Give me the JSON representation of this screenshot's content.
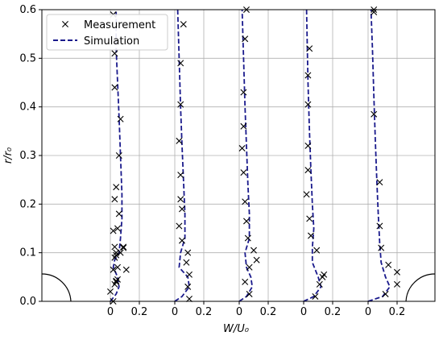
{
  "chart_data": {
    "type": "scatter",
    "xlabel": "W/U₀",
    "ylabel": "r/r₀",
    "ylim": [
      0,
      0.6
    ],
    "y_ticks": [
      "0.0",
      "0.1",
      "0.2",
      "0.3",
      "0.4",
      "0.5",
      "0.6"
    ],
    "x_ticks": [
      "0",
      "0.2",
      "0",
      "0.2",
      "0",
      "0.2",
      "0",
      "0.2",
      "0",
      "0.2"
    ],
    "grid": true,
    "legend": {
      "position": "top-left",
      "entries": [
        "Measurement",
        "Simulation"
      ]
    },
    "line_color": "#1a1a8c",
    "marker_color": "#000000",
    "series": [
      {
        "name": "Measurement",
        "panels": [
          {
            "x": [
              0.0,
              0.03,
              0.04,
              0.02,
              0.05,
              0.04,
              0.03,
              0.02,
              0.09,
              0.06,
              0.03,
              0.04,
              0.06,
              0.07,
              0.03,
              0.03,
              0.02
            ],
            "y": [
              0.02,
              0.035,
              0.042,
              0.065,
              0.07,
              0.1,
              0.112,
              0.145,
              0.112,
              0.18,
              0.21,
              0.235,
              0.3,
              0.375,
              0.44,
              0.51,
              0.59
            ],
            "point_marks": [
              [
                0.02,
                0.0
              ],
              [
                0.04,
                0.04
              ],
              [
                0.05,
                0.045
              ],
              [
                0.03,
                0.09
              ],
              [
                0.04,
                0.095
              ],
              [
                0.05,
                0.15
              ],
              [
                0.07,
                0.1
              ],
              [
                0.09,
                0.11
              ],
              [
                0.11,
                0.065
              ]
            ]
          },
          {
            "x": [
              0.1,
              0.09,
              0.1,
              0.08,
              0.09,
              0.05,
              0.03,
              0.05,
              0.04,
              0.04,
              0.03,
              0.04,
              0.04,
              0.06
            ],
            "y": [
              0.005,
              0.03,
              0.055,
              0.08,
              0.1,
              0.125,
              0.155,
              0.19,
              0.21,
              0.26,
              0.33,
              0.405,
              0.49,
              0.57
            ]
          },
          {
            "x": [
              0.07,
              0.04,
              0.07,
              0.12,
              0.1,
              0.06,
              0.05,
              0.04,
              0.03,
              0.02,
              0.03,
              0.03,
              0.04,
              0.05
            ],
            "y": [
              0.015,
              0.04,
              0.07,
              0.085,
              0.105,
              0.13,
              0.165,
              0.205,
              0.265,
              0.315,
              0.36,
              0.43,
              0.54,
              0.6
            ]
          },
          {
            "x": [
              0.08,
              0.11,
              0.13,
              0.14,
              0.09,
              0.05,
              0.04,
              0.02,
              0.03,
              0.03,
              0.03,
              0.03,
              0.04
            ],
            "y": [
              0.01,
              0.035,
              0.05,
              0.055,
              0.105,
              0.135,
              0.17,
              0.22,
              0.27,
              0.32,
              0.405,
              0.465,
              0.52
            ]
          },
          {
            "x": [
              0.12,
              0.2,
              0.2,
              0.14,
              0.09,
              0.08,
              0.08,
              0.04,
              0.04,
              0.04
            ],
            "y": [
              0.015,
              0.035,
              0.06,
              0.075,
              0.11,
              0.155,
              0.245,
              0.385,
              0.595,
              0.6
            ]
          }
        ]
      },
      {
        "name": "Simulation",
        "panels": [
          {
            "x": [
              0.0,
              0.04,
              0.06,
              0.05,
              0.02,
              0.03,
              0.06,
              0.07,
              0.08,
              0.08,
              0.07,
              0.06,
              0.05,
              0.04,
              0.04
            ],
            "y": [
              0.0,
              0.015,
              0.03,
              0.05,
              0.07,
              0.085,
              0.1,
              0.13,
              0.17,
              0.22,
              0.3,
              0.38,
              0.45,
              0.52,
              0.6
            ]
          },
          {
            "x": [
              0.0,
              0.05,
              0.1,
              0.09,
              0.03,
              0.04,
              0.07,
              0.07,
              0.06,
              0.05,
              0.04,
              0.03,
              0.02
            ],
            "y": [
              0.0,
              0.01,
              0.03,
              0.05,
              0.07,
              0.1,
              0.13,
              0.18,
              0.25,
              0.32,
              0.4,
              0.5,
              0.6
            ]
          },
          {
            "x": [
              0.0,
              0.05,
              0.09,
              0.08,
              0.05,
              0.04,
              0.07,
              0.07,
              0.06,
              0.05,
              0.04,
              0.03,
              0.02
            ],
            "y": [
              0.0,
              0.01,
              0.03,
              0.05,
              0.07,
              0.1,
              0.13,
              0.18,
              0.24,
              0.32,
              0.4,
              0.5,
              0.6
            ]
          },
          {
            "x": [
              0.0,
              0.07,
              0.12,
              0.1,
              0.06,
              0.06,
              0.07,
              0.06,
              0.05,
              0.04,
              0.03,
              0.02
            ],
            "y": [
              0.0,
              0.01,
              0.03,
              0.05,
              0.08,
              0.11,
              0.15,
              0.2,
              0.27,
              0.35,
              0.45,
              0.6
            ]
          },
          {
            "x": [
              0.0,
              0.1,
              0.15,
              0.12,
              0.09,
              0.08,
              0.07,
              0.06,
              0.05,
              0.04,
              0.03,
              0.02
            ],
            "y": [
              0.0,
              0.01,
              0.03,
              0.05,
              0.08,
              0.12,
              0.18,
              0.25,
              0.33,
              0.42,
              0.52,
              0.6
            ]
          }
        ]
      }
    ]
  }
}
